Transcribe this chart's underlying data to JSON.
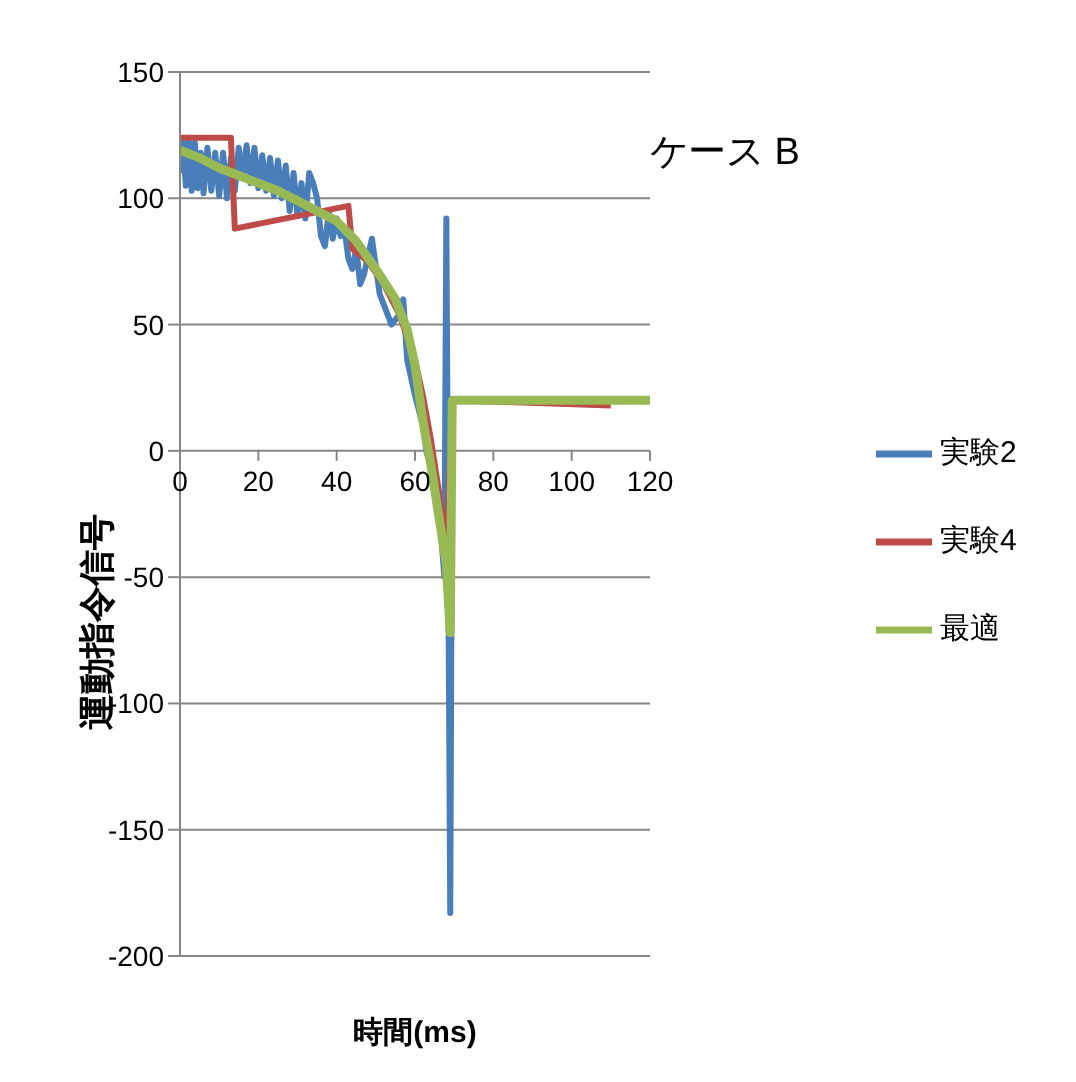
{
  "chart_data": {
    "type": "line",
    "title": "ケース B",
    "xlabel": "時間(ms)",
    "ylabel": "運動指令信号",
    "xlim": [
      0,
      120
    ],
    "xticks": [
      0,
      20,
      40,
      60,
      80,
      100,
      120
    ],
    "ylim": [
      -200,
      150
    ],
    "yticks": [
      -200,
      -150,
      -100,
      -50,
      0,
      50,
      100,
      150
    ],
    "grid": "y",
    "legend": "right",
    "marker": "none",
    "line_style": "solid",
    "series": [
      {
        "name": "実験2",
        "color": "#4a7ebb",
        "x": [
          0,
          0.7,
          1.5,
          2.2,
          3,
          3.8,
          4.5,
          5.3,
          6,
          7,
          8,
          9,
          10,
          11,
          12,
          13,
          14,
          15,
          16,
          17,
          18,
          19,
          20,
          21,
          22,
          23,
          24,
          25,
          26,
          27,
          28,
          29,
          30,
          31,
          32,
          33,
          34,
          35,
          36,
          37,
          38,
          39,
          40,
          41,
          42,
          43,
          44,
          45,
          46,
          47,
          49,
          51,
          54,
          56,
          57,
          58,
          60,
          62,
          63,
          65,
          66,
          67.5,
          68,
          69,
          69.5
        ],
        "values": [
          110,
          122,
          105,
          124,
          103,
          122,
          104,
          118,
          102,
          120,
          103,
          118,
          101,
          118,
          100,
          116,
          103,
          120,
          108,
          121,
          106,
          120,
          104,
          117,
          103,
          116,
          101,
          115,
          100,
          113,
          95,
          110,
          93,
          106,
          92,
          110,
          106,
          100,
          85,
          81,
          95,
          84,
          92,
          85,
          88,
          76,
          72,
          80,
          66,
          70,
          84,
          62,
          50,
          54,
          60,
          36,
          22,
          10,
          -1,
          -10,
          -20,
          -50,
          92,
          -183,
          20
        ]
      },
      {
        "name": "実験4",
        "color": "#be4b48",
        "x": [
          0,
          13,
          14,
          43,
          44,
          48,
          52,
          56,
          60,
          62,
          64,
          66,
          68,
          69.5,
          110
        ],
        "values": [
          124,
          124,
          88,
          97,
          80,
          75,
          66,
          54,
          36,
          22,
          5,
          -15,
          -40,
          20,
          18
        ]
      },
      {
        "name": "最適",
        "color": "#98b954",
        "x": [
          0,
          5,
          10,
          15,
          20,
          25,
          30,
          35,
          40,
          45,
          50,
          55,
          58,
          60,
          62,
          64,
          66,
          68,
          69,
          69.5,
          120
        ],
        "values": [
          119,
          116,
          112,
          109,
          106,
          103,
          99,
          95,
          91,
          83,
          72,
          60,
          48,
          34,
          12,
          -5,
          -25,
          -45,
          -72,
          20,
          20
        ]
      }
    ]
  }
}
